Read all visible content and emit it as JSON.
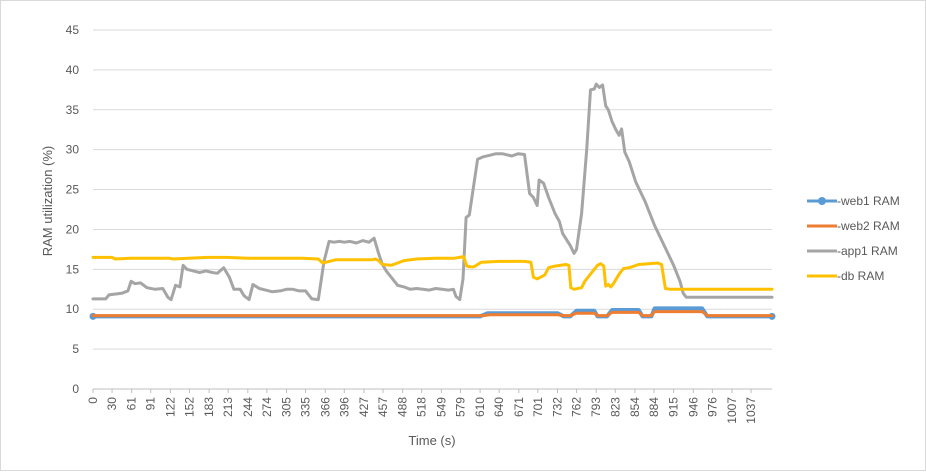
{
  "chart_data": {
    "type": "line",
    "title": "",
    "xlabel": "Time (s)",
    "ylabel": "RAM utilization (%)",
    "ylim": [
      0,
      45
    ],
    "yticks": [
      0,
      5,
      10,
      15,
      20,
      25,
      30,
      35,
      40,
      45
    ],
    "x_tick_labels": [
      "0",
      "30",
      "61",
      "91",
      "122",
      "152",
      "183",
      "213",
      "244",
      "274",
      "305",
      "335",
      "366",
      "396",
      "427",
      "457",
      "488",
      "518",
      "549",
      "579",
      "610",
      "640",
      "671",
      "701",
      "732",
      "762",
      "793",
      "823",
      "854",
      "884",
      "915",
      "946",
      "976",
      "1007",
      "1037"
    ],
    "xlim": [
      0,
      1070
    ],
    "grid": "horizontal",
    "legend_position": "right",
    "series": [
      {
        "name": "-web1 RAM",
        "color": "#5b9bd5",
        "marker": "circle",
        "points": [
          [
            0,
            9.1
          ],
          [
            610,
            9.1
          ],
          [
            622,
            9.5
          ],
          [
            732,
            9.5
          ],
          [
            742,
            9.1
          ],
          [
            752,
            9.1
          ],
          [
            762,
            9.8
          ],
          [
            790,
            9.8
          ],
          [
            795,
            9.1
          ],
          [
            810,
            9.1
          ],
          [
            818,
            9.9
          ],
          [
            860,
            9.9
          ],
          [
            866,
            9.1
          ],
          [
            880,
            9.1
          ],
          [
            885,
            10.1
          ],
          [
            960,
            10.1
          ],
          [
            968,
            9.1
          ],
          [
            1070,
            9.1
          ]
        ]
      },
      {
        "name": "-web2 RAM",
        "color": "#ed7d31",
        "marker": "none",
        "points": [
          [
            0,
            9.2
          ],
          [
            615,
            9.2
          ],
          [
            625,
            9.3
          ],
          [
            732,
            9.3
          ],
          [
            742,
            9.2
          ],
          [
            752,
            9.2
          ],
          [
            762,
            9.5
          ],
          [
            790,
            9.5
          ],
          [
            795,
            9.2
          ],
          [
            810,
            9.2
          ],
          [
            818,
            9.6
          ],
          [
            860,
            9.6
          ],
          [
            866,
            9.2
          ],
          [
            880,
            9.2
          ],
          [
            885,
            9.7
          ],
          [
            960,
            9.7
          ],
          [
            968,
            9.2
          ],
          [
            1070,
            9.2
          ]
        ]
      },
      {
        "name": "-app1 RAM",
        "color": "#a5a5a5",
        "marker": "none",
        "points": [
          [
            0,
            11.3
          ],
          [
            20,
            11.3
          ],
          [
            25,
            11.8
          ],
          [
            45,
            12.0
          ],
          [
            55,
            12.3
          ],
          [
            60,
            13.5
          ],
          [
            66,
            13.2
          ],
          [
            75,
            13.3
          ],
          [
            85,
            12.7
          ],
          [
            98,
            12.5
          ],
          [
            110,
            12.6
          ],
          [
            118,
            11.5
          ],
          [
            123,
            11.2
          ],
          [
            130,
            13.0
          ],
          [
            137,
            12.8
          ],
          [
            142,
            15.5
          ],
          [
            148,
            15.0
          ],
          [
            158,
            14.8
          ],
          [
            168,
            14.6
          ],
          [
            178,
            14.8
          ],
          [
            188,
            14.6
          ],
          [
            196,
            14.5
          ],
          [
            206,
            15.2
          ],
          [
            215,
            14.0
          ],
          [
            222,
            12.5
          ],
          [
            232,
            12.5
          ],
          [
            238,
            11.7
          ],
          [
            246,
            11.2
          ],
          [
            252,
            13.1
          ],
          [
            262,
            12.6
          ],
          [
            272,
            12.4
          ],
          [
            282,
            12.2
          ],
          [
            295,
            12.3
          ],
          [
            305,
            12.5
          ],
          [
            315,
            12.5
          ],
          [
            325,
            12.3
          ],
          [
            335,
            12.3
          ],
          [
            345,
            11.3
          ],
          [
            355,
            11.2
          ],
          [
            364,
            16.0
          ],
          [
            372,
            18.5
          ],
          [
            380,
            18.4
          ],
          [
            388,
            18.5
          ],
          [
            396,
            18.4
          ],
          [
            405,
            18.5
          ],
          [
            415,
            18.3
          ],
          [
            425,
            18.6
          ],
          [
            435,
            18.4
          ],
          [
            443,
            18.9
          ],
          [
            450,
            17.0
          ],
          [
            456,
            15.6
          ],
          [
            462,
            14.8
          ],
          [
            470,
            14.0
          ],
          [
            480,
            13.0
          ],
          [
            490,
            12.8
          ],
          [
            500,
            12.5
          ],
          [
            510,
            12.6
          ],
          [
            520,
            12.5
          ],
          [
            530,
            12.4
          ],
          [
            540,
            12.6
          ],
          [
            550,
            12.5
          ],
          [
            560,
            12.4
          ],
          [
            568,
            12.5
          ],
          [
            572,
            11.6
          ],
          [
            578,
            11.2
          ],
          [
            583,
            13.8
          ],
          [
            588,
            21.5
          ],
          [
            593,
            21.8
          ],
          [
            598,
            24.5
          ],
          [
            606,
            28.8
          ],
          [
            615,
            29.1
          ],
          [
            625,
            29.3
          ],
          [
            635,
            29.5
          ],
          [
            645,
            29.5
          ],
          [
            660,
            29.2
          ],
          [
            670,
            29.5
          ],
          [
            680,
            29.4
          ],
          [
            688,
            24.5
          ],
          [
            694,
            24.0
          ],
          [
            700,
            23.0
          ],
          [
            703,
            26.2
          ],
          [
            710,
            25.8
          ],
          [
            718,
            24.0
          ],
          [
            728,
            22.0
          ],
          [
            735,
            21.0
          ],
          [
            740,
            19.5
          ],
          [
            752,
            18.0
          ],
          [
            758,
            17.0
          ],
          [
            762,
            17.5
          ],
          [
            770,
            22.0
          ],
          [
            778,
            30.0
          ],
          [
            784,
            37.5
          ],
          [
            790,
            37.6
          ],
          [
            793,
            38.2
          ],
          [
            798,
            37.8
          ],
          [
            803,
            38.1
          ],
          [
            808,
            35.5
          ],
          [
            812,
            35.0
          ],
          [
            818,
            33.5
          ],
          [
            824,
            32.5
          ],
          [
            829,
            31.8
          ],
          [
            833,
            32.6
          ],
          [
            838,
            29.7
          ],
          [
            845,
            28.5
          ],
          [
            855,
            26.0
          ],
          [
            870,
            23.5
          ],
          [
            885,
            20.5
          ],
          [
            900,
            18.0
          ],
          [
            915,
            15.5
          ],
          [
            925,
            13.5
          ],
          [
            930,
            12.0
          ],
          [
            935,
            11.5
          ],
          [
            1070,
            11.5
          ]
        ]
      },
      {
        "name": "-db RAM",
        "color": "#ffc000",
        "marker": "none",
        "points": [
          [
            0,
            16.5
          ],
          [
            30,
            16.5
          ],
          [
            35,
            16.3
          ],
          [
            60,
            16.4
          ],
          [
            120,
            16.4
          ],
          [
            126,
            16.3
          ],
          [
            150,
            16.4
          ],
          [
            180,
            16.5
          ],
          [
            210,
            16.5
          ],
          [
            245,
            16.4
          ],
          [
            270,
            16.4
          ],
          [
            300,
            16.4
          ],
          [
            330,
            16.4
          ],
          [
            355,
            16.3
          ],
          [
            362,
            15.8
          ],
          [
            372,
            16.0
          ],
          [
            382,
            16.2
          ],
          [
            400,
            16.2
          ],
          [
            440,
            16.2
          ],
          [
            445,
            16.3
          ],
          [
            450,
            16.1
          ],
          [
            456,
            15.6
          ],
          [
            470,
            15.5
          ],
          [
            480,
            15.8
          ],
          [
            490,
            16.1
          ],
          [
            510,
            16.3
          ],
          [
            540,
            16.4
          ],
          [
            570,
            16.4
          ],
          [
            584,
            16.6
          ],
          [
            589,
            15.4
          ],
          [
            595,
            15.3
          ],
          [
            600,
            15.3
          ],
          [
            612,
            15.9
          ],
          [
            640,
            16.0
          ],
          [
            680,
            16.0
          ],
          [
            690,
            15.9
          ],
          [
            694,
            14.0
          ],
          [
            700,
            13.8
          ],
          [
            712,
            14.3
          ],
          [
            718,
            15.2
          ],
          [
            728,
            15.4
          ],
          [
            745,
            15.6
          ],
          [
            750,
            15.5
          ],
          [
            753,
            12.7
          ],
          [
            758,
            12.5
          ],
          [
            770,
            12.7
          ],
          [
            775,
            13.5
          ],
          [
            785,
            14.5
          ],
          [
            795,
            15.5
          ],
          [
            800,
            15.7
          ],
          [
            805,
            15.4
          ],
          [
            808,
            12.9
          ],
          [
            812,
            13.1
          ],
          [
            816,
            12.8
          ],
          [
            820,
            13.2
          ],
          [
            826,
            14.0
          ],
          [
            830,
            14.5
          ],
          [
            836,
            15.1
          ],
          [
            845,
            15.2
          ],
          [
            860,
            15.6
          ],
          [
            875,
            15.7
          ],
          [
            890,
            15.8
          ],
          [
            896,
            15.6
          ],
          [
            902,
            12.6
          ],
          [
            910,
            12.5
          ],
          [
            1070,
            12.5
          ]
        ]
      }
    ]
  }
}
